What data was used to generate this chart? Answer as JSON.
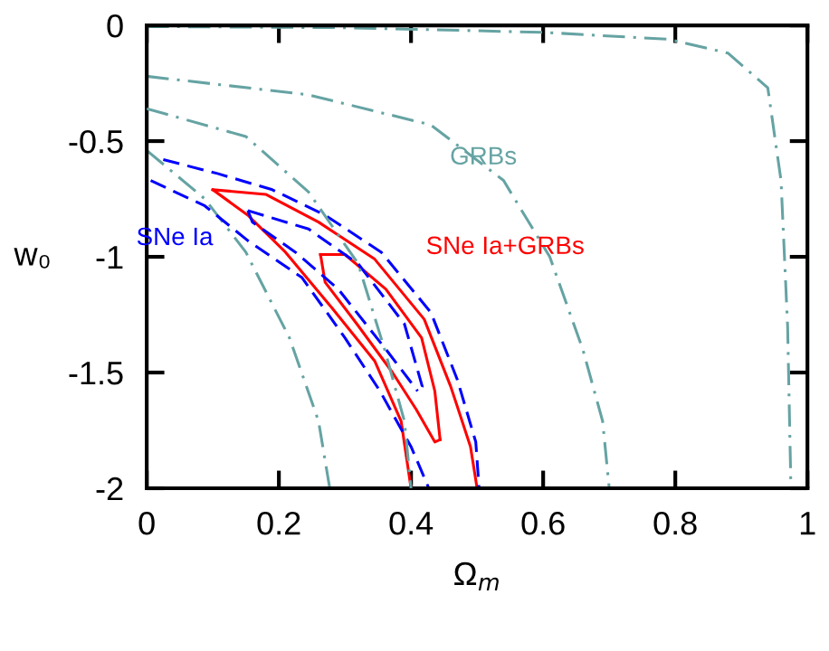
{
  "chart_data": {
    "type": "line",
    "xlabel": "Ω$_{m}$",
    "ylabel": "w₀",
    "xlim": [
      0,
      1
    ],
    "ylim": [
      -2,
      0
    ],
    "xticks": [
      0,
      0.2,
      0.4,
      0.6,
      0.8,
      1
    ],
    "yticks": [
      {
        "value": 0,
        "label": "0"
      },
      {
        "value": -0.5,
        "label": "-0.5"
      },
      {
        "value": -1,
        "label": "-1"
      },
      {
        "value": -1.5,
        "label": "-1.5"
      },
      {
        "value": -2,
        "label": "-2"
      }
    ],
    "grid": false,
    "legend": false,
    "series": [
      {
        "color": "#66a3a3",
        "line_style": "dashdot",
        "x": [
          0,
          0.3,
          0.6,
          0.79,
          0.88,
          0.94,
          0.96,
          0.97,
          0.975
        ],
        "values": [
          -0.005,
          -0.01,
          -0.03,
          -0.06,
          -0.12,
          -0.27,
          -0.67,
          -1.3,
          -2
        ]
      },
      {
        "name": "GRBs",
        "color": "#66a3a3",
        "line_style": "dashdot",
        "x": [
          0,
          0.245,
          0.43,
          0.54,
          0.61,
          0.66,
          0.69,
          0.7
        ],
        "values": [
          -0.22,
          -0.3,
          -0.43,
          -0.67,
          -1.0,
          -1.4,
          -1.71,
          -2
        ]
      },
      {
        "color": "#66a3a3",
        "line_style": "dashdot",
        "x": [
          0,
          0.15,
          0.245,
          0.32,
          0.36,
          0.39,
          0.4
        ],
        "values": [
          -0.36,
          -0.48,
          -0.72,
          -1.03,
          -1.4,
          -1.71,
          -2
        ]
      },
      {
        "color": "#66a3a3",
        "line_style": "dashdot",
        "x": [
          0,
          0.088,
          0.15,
          0.216,
          0.26,
          0.277
        ],
        "values": [
          -0.54,
          -0.75,
          -0.98,
          -1.35,
          -1.71,
          -2
        ]
      },
      {
        "color": "#ff0000",
        "line_style": "solid",
        "x": [
          0.1,
          0.18,
          0.26,
          0.345,
          0.42,
          0.46,
          0.49,
          0.5
        ],
        "values": [
          -0.71,
          -0.73,
          -0.85,
          -1.01,
          -1.27,
          -1.56,
          -1.82,
          -2
        ]
      },
      {
        "name": "SNe Ia+GRBs",
        "color": "#ff0000",
        "line_style": "solid",
        "x": [
          0.1,
          0.153,
          0.21,
          0.28,
          0.345,
          0.385,
          0.4
        ],
        "values": [
          -0.71,
          -0.82,
          -0.98,
          -1.22,
          -1.45,
          -1.71,
          -2
        ]
      },
      {
        "color": "#ff0000",
        "line_style": "solid",
        "x": [
          0.263,
          0.3,
          0.362,
          0.416,
          0.436,
          0.444
        ],
        "values": [
          -0.99,
          -0.99,
          -1.14,
          -1.35,
          -1.58,
          -1.79
        ]
      },
      {
        "color": "#ff0000",
        "line_style": "solid",
        "x": [
          0.263,
          0.27,
          0.318,
          0.372,
          0.408,
          0.436,
          0.444
        ],
        "values": [
          -0.99,
          -1.11,
          -1.29,
          -1.5,
          -1.66,
          -1.8,
          -1.79
        ]
      },
      {
        "color": "#0000ff",
        "line_style": "dashed",
        "x": [
          0.025,
          0.107,
          0.19,
          0.27,
          0.355,
          0.43,
          0.47,
          0.498,
          0.503
        ],
        "values": [
          -0.58,
          -0.64,
          -0.71,
          -0.82,
          -0.98,
          -1.24,
          -1.53,
          -1.8,
          -2
        ]
      },
      {
        "name": "SNe Ia",
        "color": "#0000ff",
        "line_style": "dashed",
        "x": [
          0.006,
          0.088,
          0.153,
          0.235,
          0.3,
          0.353,
          0.4,
          0.427
        ],
        "values": [
          -0.67,
          -0.78,
          -0.93,
          -1.09,
          -1.35,
          -1.58,
          -1.82,
          -2
        ]
      },
      {
        "color": "#0000ff",
        "line_style": "dashed",
        "x": [
          0.153,
          0.245,
          0.32,
          0.39,
          0.417,
          0.41
        ],
        "values": [
          -0.8,
          -0.88,
          -1.03,
          -1.29,
          -1.56,
          -1.58
        ]
      },
      {
        "color": "#0000ff",
        "line_style": "dashed",
        "x": [
          0.153,
          0.16,
          0.225,
          0.29,
          0.362,
          0.41
        ],
        "values": [
          -0.8,
          -0.85,
          -0.98,
          -1.14,
          -1.4,
          -1.58
        ]
      }
    ]
  }
}
